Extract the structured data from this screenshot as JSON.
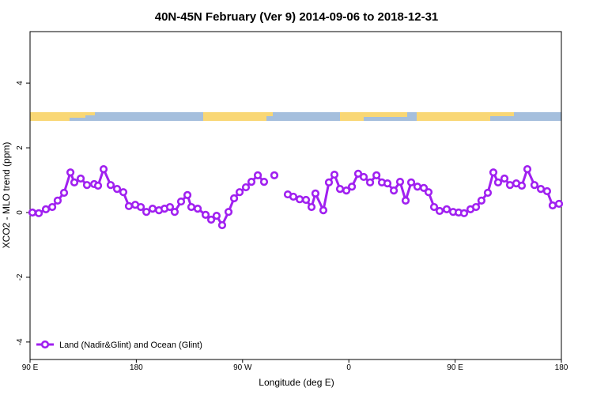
{
  "chart_data": {
    "type": "line",
    "title": "40N-45N February (Ver 9)   2014-09-06 to 2018-12-31",
    "x_label": "Longitude (deg E)",
    "y_label": "XCO2 - MLO trend (ppm)",
    "xlim": [
      90,
      540
    ],
    "xticks": [
      {
        "value": 90,
        "label": "90 E"
      },
      {
        "value": 180,
        "label": "180"
      },
      {
        "value": 270,
        "label": "90 W"
      },
      {
        "value": 360,
        "label": "0"
      },
      {
        "value": 450,
        "label": "90 E"
      },
      {
        "value": 540,
        "label": "180"
      }
    ],
    "ylim": [
      -4.54,
      5.59
    ],
    "yticks": [
      -4,
      -2,
      0,
      2,
      4
    ],
    "legend": "bottom-left",
    "x": [
      92.0,
      97.4,
      103.4,
      108.8,
      113.4,
      118.8,
      124.2,
      127.5,
      132.9,
      138.2,
      144.3,
      147.6,
      152.3,
      158.3,
      163.7,
      169.0,
      173.7,
      179.1,
      183.8,
      188.5,
      193.8,
      199.2,
      203.9,
      208.5,
      212.5,
      217.9,
      223.3,
      226.6,
      232.0,
      238.7,
      243.4,
      248.0,
      252.7,
      258.1,
      262.8,
      267.5,
      272.8,
      277.5,
      282.9,
      288.2,
      null,
      296.9,
      null,
      308.3,
      313.0,
      318.4,
      323.7,
      328.4,
      331.7,
      338.4,
      343.1,
      347.8,
      352.5,
      357.9,
      362.6,
      367.9,
      372.6,
      378.0,
      383.4,
      388.0,
      392.7,
      398.1,
      403.4,
      408.1,
      412.8,
      418.1,
      423.5,
      427.5,
      432.2,
      436.9,
      442.9,
      448.3,
      453.0,
      457.6,
      463.0,
      467.7,
      472.3,
      477.7,
      482.4,
      486.4,
      491.8,
      496.5,
      501.8,
      506.5,
      511.2,
      517.2,
      522.6,
      527.9,
      532.6,
      538.0
    ],
    "series": [
      {
        "name": "Land (Nadir&Glint) and Ocean (Glint)",
        "color": "#a020f0",
        "values": [
          0.0,
          -0.02,
          0.1,
          0.17,
          0.37,
          0.61,
          1.24,
          0.93,
          1.05,
          0.85,
          0.88,
          0.83,
          1.34,
          0.85,
          0.73,
          0.63,
          0.2,
          0.24,
          0.17,
          0.02,
          0.12,
          0.07,
          0.12,
          0.17,
          0.02,
          0.34,
          0.54,
          0.17,
          0.12,
          -0.07,
          -0.22,
          -0.1,
          -0.39,
          0.02,
          0.44,
          0.63,
          0.78,
          0.95,
          1.15,
          0.95,
          null,
          1.15,
          null,
          0.56,
          0.49,
          0.41,
          0.39,
          0.17,
          0.59,
          0.07,
          0.93,
          1.17,
          0.73,
          0.68,
          0.8,
          1.2,
          1.1,
          0.93,
          1.15,
          0.93,
          0.9,
          0.68,
          0.95,
          0.37,
          0.93,
          0.8,
          0.76,
          0.63,
          0.17,
          0.05,
          0.1,
          0.02,
          0.0,
          -0.02,
          0.1,
          0.17,
          0.37,
          0.61,
          1.24,
          0.93,
          1.05,
          0.85,
          0.9,
          0.83,
          1.34,
          0.85,
          0.73,
          0.66,
          0.22,
          0.27
        ]
      }
    ]
  }
}
